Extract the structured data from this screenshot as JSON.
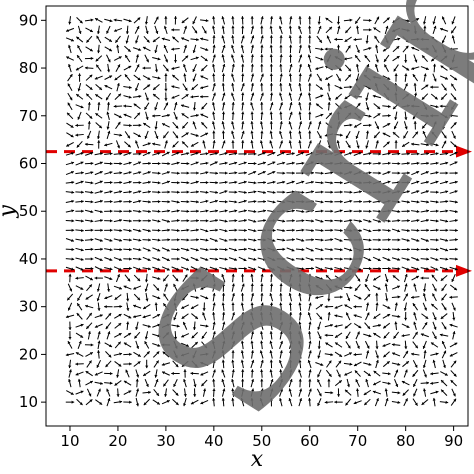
{
  "chart_data": {
    "type": "scatter",
    "variant": "vector-field",
    "title": "",
    "xlabel": "x",
    "ylabel": "y",
    "xlim": [
      5,
      93
    ],
    "ylim": [
      5,
      93
    ],
    "xticks": [
      10,
      20,
      30,
      40,
      50,
      60,
      70,
      80,
      90
    ],
    "yticks": [
      10,
      20,
      30,
      40,
      50,
      60,
      70,
      80,
      90
    ],
    "xtick_labels": [
      "10",
      "20",
      "30",
      "40",
      "50",
      "60",
      "70",
      "80",
      "90"
    ],
    "ytick_labels": [
      "10",
      "20",
      "30",
      "40",
      "50",
      "60",
      "70",
      "80",
      "90"
    ],
    "grid": false,
    "legend": false,
    "field_grid": {
      "x_start": 10,
      "x_end": 90,
      "y_start": 10,
      "y_end": 90,
      "step": 2
    },
    "field_color": "#000000",
    "reference_lines": [
      {
        "y": 62.5,
        "color": "#e00000",
        "style": "dashed",
        "arrow": "right"
      },
      {
        "y": 37.5,
        "color": "#e00000",
        "style": "dashed",
        "arrow": "right"
      }
    ],
    "watermark": {
      "text": "Script",
      "color": "#6e6e6e"
    }
  }
}
